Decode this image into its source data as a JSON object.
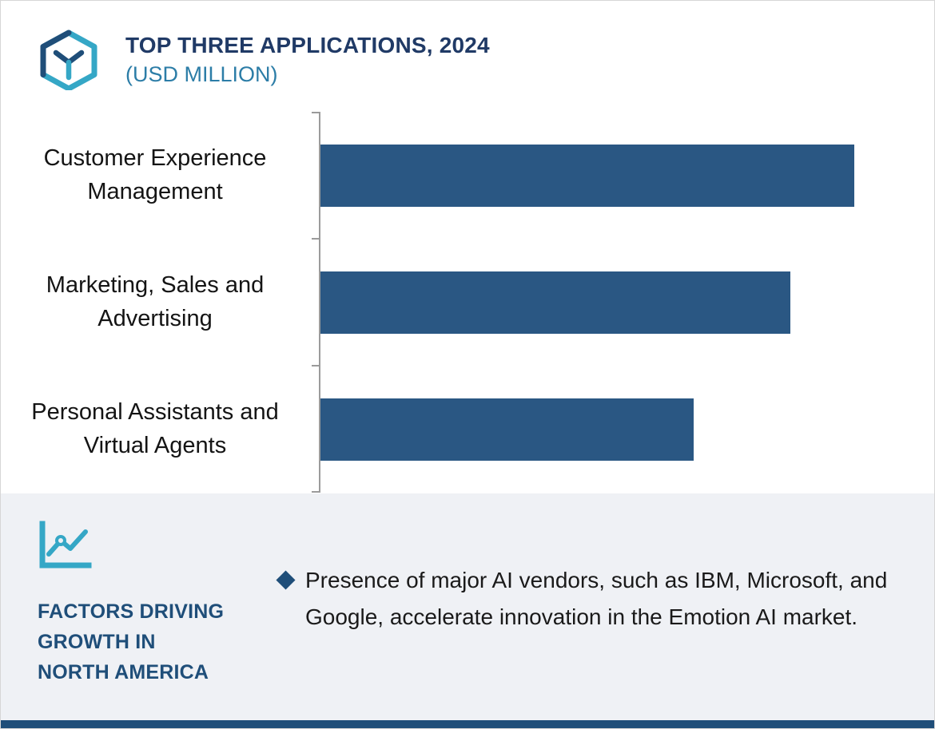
{
  "colors": {
    "title_navy": "#203A66",
    "heading_navy": "#1F4E79",
    "bar_navy": "#2A5783",
    "teal": "#35A7C6",
    "subtitle_blue": "#2C7DA7",
    "panel_bg": "#EFF1F5",
    "footer_navy": "#1F4E79",
    "text": "#1A1A1A",
    "axis_gray": "#9B9B9B"
  },
  "header": {
    "title": "TOP THREE APPLICATIONS, 2024",
    "subtitle": "(USD MILLION)",
    "icon": "cube-hexagon-logo-icon"
  },
  "chart_data": {
    "type": "bar",
    "orientation": "horizontal",
    "title": "TOP THREE APPLICATIONS, 2024",
    "units": "USD MILLION",
    "categories": [
      "Customer Experience Management",
      "Marketing, Sales and Advertising",
      "Personal Assistants and Virtual Agents"
    ],
    "values": [
      100,
      88,
      70
    ],
    "values_note": "relative estimates; no numeric axis labels shown",
    "xlim": [
      0,
      115
    ],
    "grid": false,
    "value_labels_shown": false,
    "bar_color": "#2A5783"
  },
  "factors": {
    "icon": "line-chart-icon",
    "heading_lines": [
      "FACTORS DRIVING",
      "GROWTH IN",
      "NORTH AMERICA"
    ],
    "bullet_icon": "diamond-bullet-icon",
    "bullet_text": "Presence of major AI vendors, such as IBM, Microsoft, and Google, accelerate innovation in the Emotion AI market."
  }
}
